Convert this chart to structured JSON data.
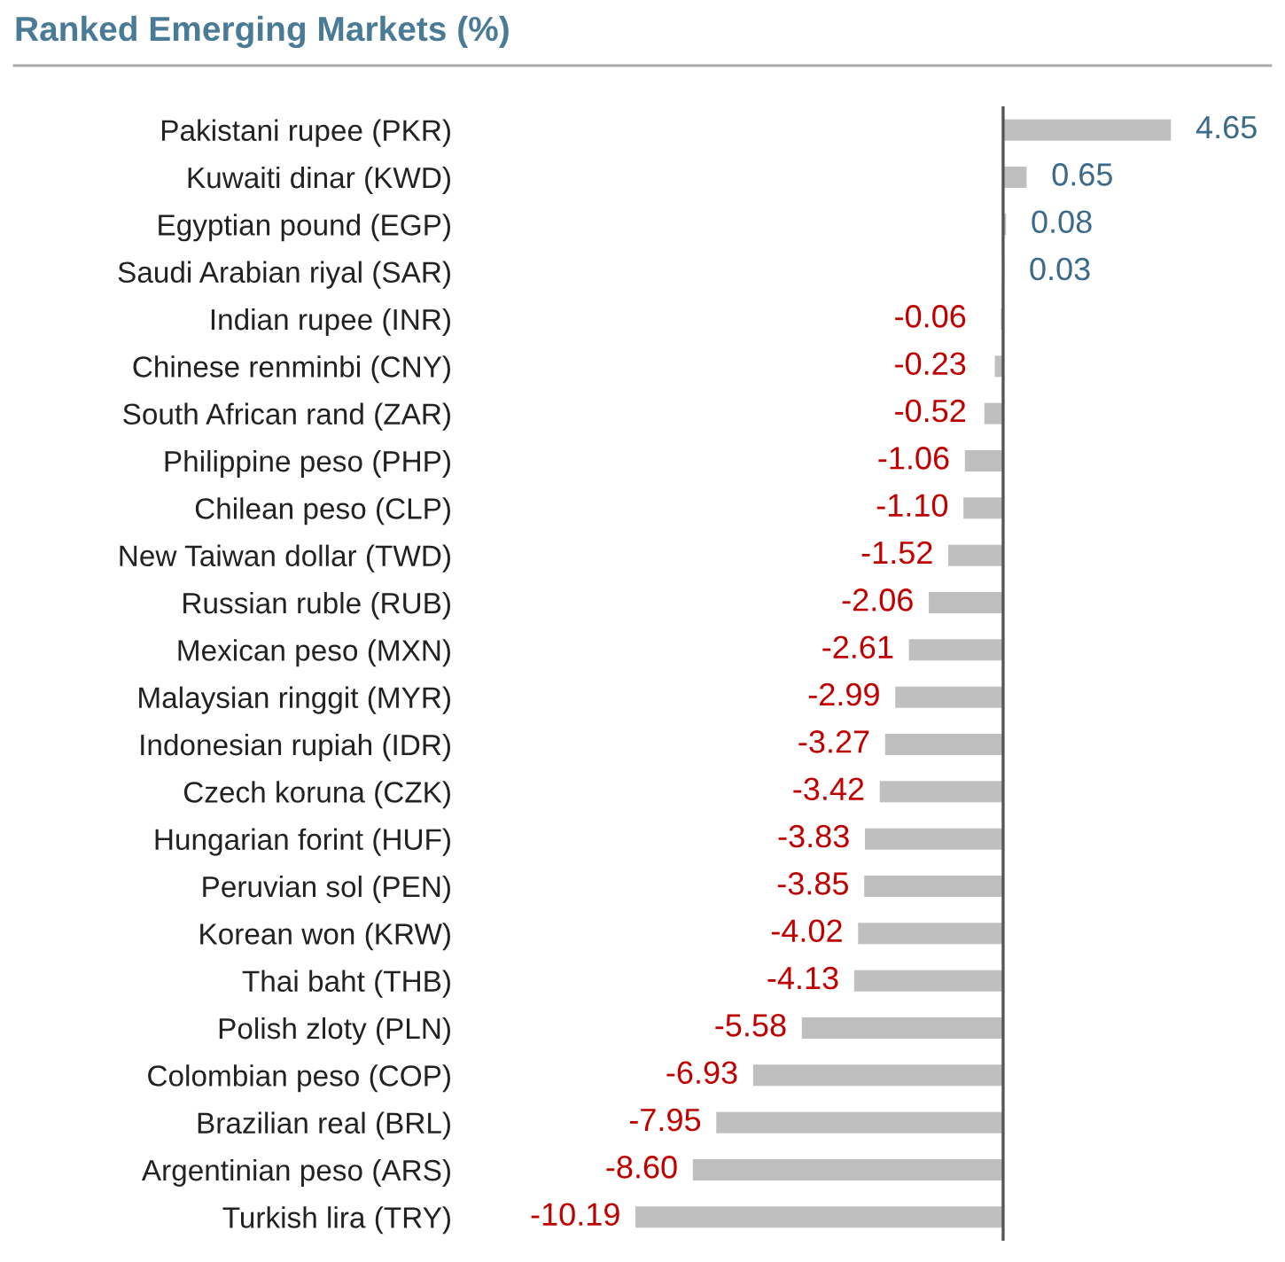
{
  "chart_data": {
    "type": "bar",
    "orientation": "horizontal",
    "title": "Ranked Emerging Markets (%)",
    "categories": [
      "Pakistani rupee (PKR)",
      "Kuwaiti dinar (KWD)",
      "Egyptian pound (EGP)",
      "Saudi Arabian riyal (SAR)",
      "Indian rupee (INR)",
      "Chinese renminbi (CNY)",
      "South African rand (ZAR)",
      "Philippine peso (PHP)",
      "Chilean peso (CLP)",
      "New Taiwan dollar (TWD)",
      "Russian ruble (RUB)",
      "Mexican peso (MXN)",
      "Malaysian ringgit (MYR)",
      "Indonesian rupiah (IDR)",
      "Czech koruna (CZK)",
      "Hungarian forint (HUF)",
      "Peruvian sol (PEN)",
      "Korean won (KRW)",
      "Thai baht (THB)",
      "Polish zloty (PLN)",
      "Colombian peso (COP)",
      "Brazilian real (BRL)",
      "Argentinian peso (ARS)",
      "Turkish lira (TRY)"
    ],
    "values": [
      4.65,
      0.65,
      0.08,
      0.03,
      -0.06,
      -0.23,
      -0.52,
      -1.06,
      -1.1,
      -1.52,
      -2.06,
      -2.61,
      -2.99,
      -3.27,
      -3.42,
      -3.83,
      -3.85,
      -4.02,
      -4.13,
      -5.58,
      -6.93,
      -7.95,
      -8.6,
      -10.19
    ],
    "value_labels": [
      "4.65",
      "0.65",
      "0.08",
      "0.03",
      "-0.06",
      "-0.23",
      "-0.52",
      "-1.06",
      "-1.10",
      "-1.52",
      "-2.06",
      "-2.61",
      "-2.99",
      "-3.27",
      "-3.42",
      "-3.83",
      "-3.85",
      "-4.02",
      "-4.13",
      "-5.58",
      "-6.93",
      "-7.95",
      "-8.60",
      "-10.19"
    ],
    "color": "#bfbfbf",
    "tick_labels": "y"
  }
}
